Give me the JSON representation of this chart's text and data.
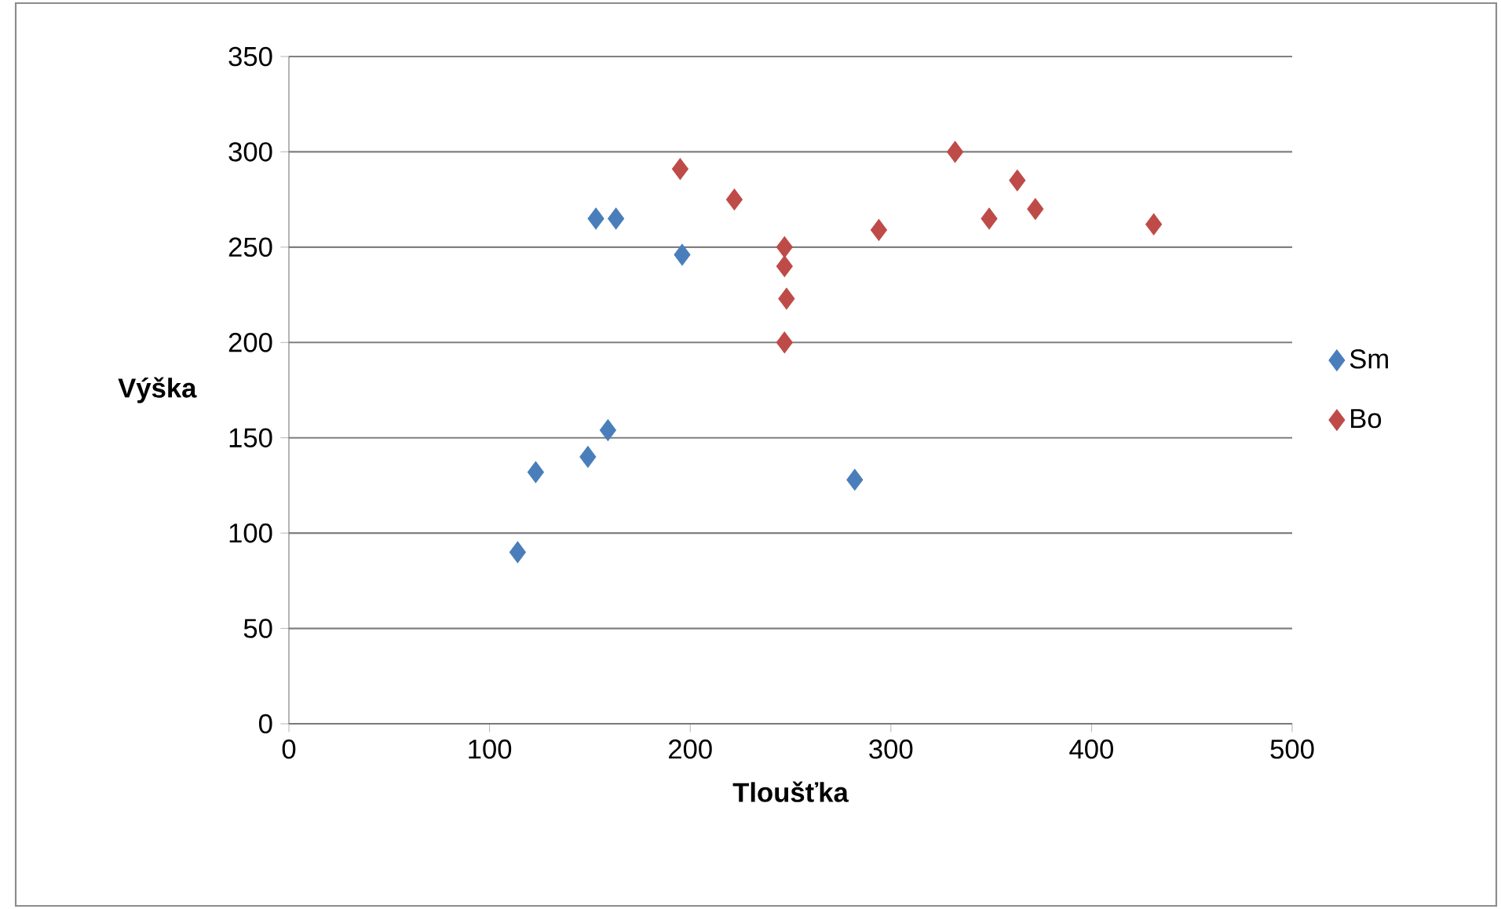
{
  "chart_data": {
    "type": "scatter",
    "xlabel": "Tloušťka",
    "ylabel": "Výška",
    "xlim": [
      0,
      500
    ],
    "xticks": [
      0,
      100,
      200,
      300,
      400,
      500
    ],
    "ylim": [
      0,
      350
    ],
    "yticks": [
      0,
      50,
      100,
      150,
      200,
      250,
      300,
      350
    ],
    "grid": "y",
    "legend": "right",
    "marker": "diamond",
    "series": [
      {
        "name": "Sm",
        "color": "#4a7ebb",
        "x": [
          114,
          123,
          149,
          159,
          153,
          163,
          196,
          282
        ],
        "values": [
          90,
          132,
          140,
          154,
          265,
          265,
          246,
          128
        ]
      },
      {
        "name": "Bo",
        "color": "#be4b48",
        "x": [
          195,
          222,
          247,
          247,
          248,
          247,
          294,
          332,
          349,
          363,
          372,
          431
        ],
        "values": [
          291,
          275,
          250,
          240,
          223,
          200,
          259,
          300,
          265,
          285,
          270,
          262
        ]
      }
    ]
  }
}
